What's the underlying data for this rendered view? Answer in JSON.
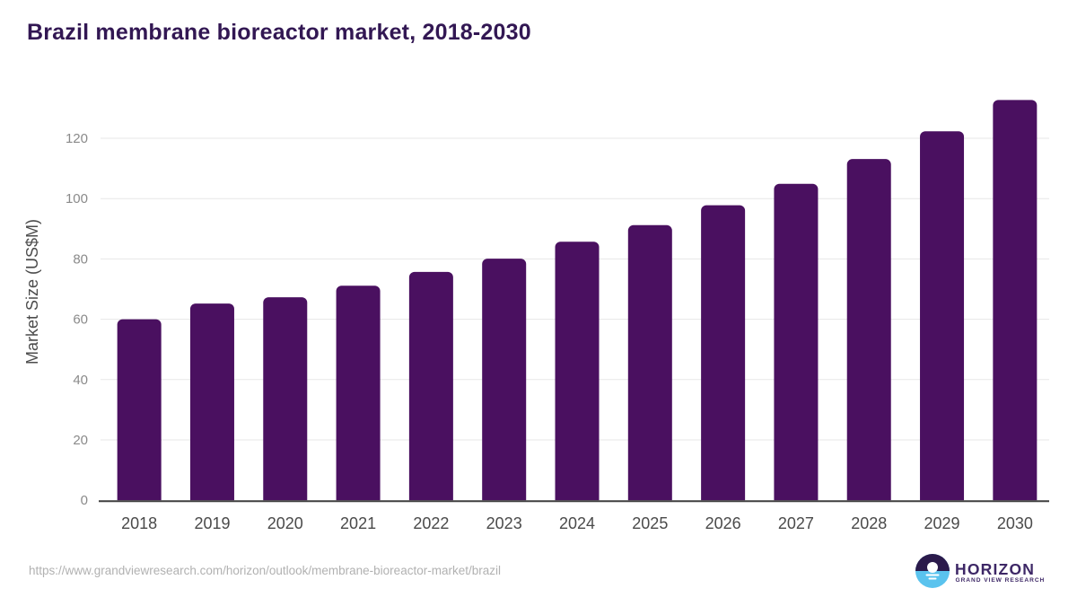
{
  "title": {
    "text": "Brazil membrane bioreactor market, 2018-2030",
    "color": "#321753"
  },
  "chart_data": {
    "type": "bar",
    "title": "Brazil membrane bioreactor market, 2018-2030",
    "categories": [
      "2018",
      "2019",
      "2020",
      "2021",
      "2022",
      "2023",
      "2024",
      "2025",
      "2026",
      "2027",
      "2028",
      "2029",
      "2030"
    ],
    "values": [
      60.0,
      65.2,
      67.3,
      71.1,
      75.7,
      80.1,
      85.7,
      91.2,
      97.8,
      104.9,
      113.1,
      122.3,
      132.7
    ],
    "xlabel": "",
    "ylabel": "Market Size (US$M)",
    "yticks": [
      0,
      20,
      40,
      60,
      80,
      100,
      120
    ],
    "ylim": [
      0,
      140
    ],
    "grid": "horizontal",
    "legend": false,
    "bar_color": "#4a1060",
    "axis_line_color": "#3f3f3f",
    "gridline_color": "#e7e7e7",
    "tick_label_color": "#8a8a8a",
    "category_label_color": "#4a4a4a",
    "axis_title_color": "#4c4c4c"
  },
  "footer": {
    "source_url": "https://www.grandviewresearch.com/horizon/outlook/membrane-bioreactor-market/brazil",
    "logo": {
      "brand": "HORIZON",
      "tagline": "GRAND VIEW RESEARCH",
      "icon": "horizon-sun-over-water-icon",
      "colors": {
        "dark_purple": "#2b1a4b",
        "light_blue": "#5ac3ee",
        "text": "#3d2766"
      }
    }
  }
}
